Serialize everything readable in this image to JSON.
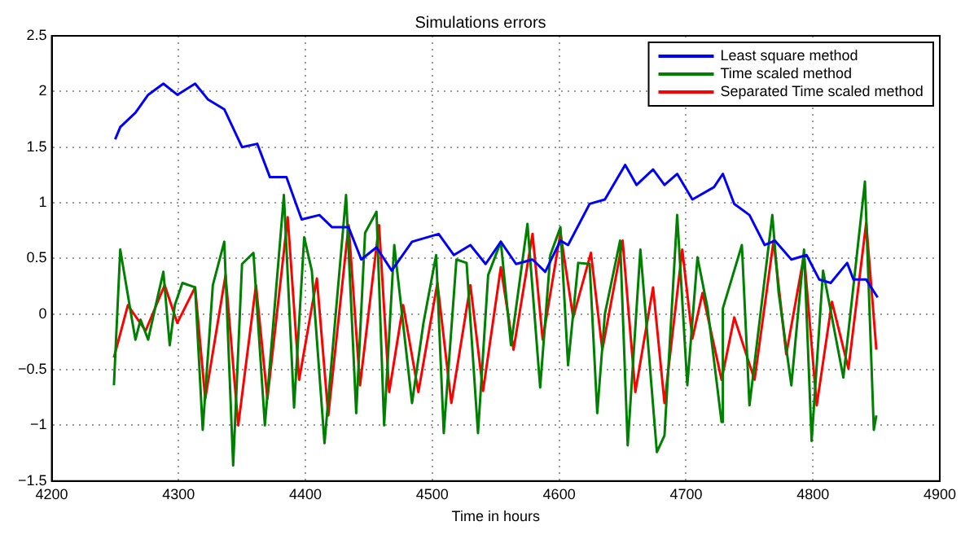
{
  "chart_data": {
    "type": "line",
    "title": "Simulations errors",
    "xlabel": "Time in hours",
    "xlim": [
      4200,
      4900
    ],
    "xticks": [
      4200,
      4300,
      4400,
      4500,
      4600,
      4700,
      4800,
      4900
    ],
    "ylim": [
      -1.5,
      2.5
    ],
    "yticks": [
      {
        "value": -1.5,
        "label": "−1.5"
      },
      {
        "value": -1,
        "label": "−1"
      },
      {
        "value": -0.5,
        "label": "−0.5"
      },
      0,
      0.5,
      1,
      1.5,
      2,
      2.5
    ],
    "grid": true,
    "legend": "top right",
    "marker": "none",
    "line_style": "solid",
    "series": [
      {
        "name": "Least square method",
        "color": "#0000ff",
        "x": [
          4250,
          4254,
          4266,
          4276,
          4288,
          4299,
          4313,
          4323,
          4336,
          4350,
          4362,
          4372,
          4385,
          4397,
          4411,
          4421,
          4434,
          4444,
          4456,
          4468,
          4484,
          4505,
          4517,
          4530,
          4542,
          4554,
          4566,
          4579,
          4589,
          4601,
          4607,
          4624,
          4636,
          4652,
          4661,
          4674,
          4683,
          4693,
          4705,
          4722,
          4729,
          4738,
          4750,
          4762,
          4770,
          4783,
          4795,
          4805,
          4814,
          4827,
          4832,
          4842,
          4851
        ],
        "values": [
          1.57,
          1.68,
          1.81,
          1.97,
          2.07,
          1.97,
          2.07,
          1.93,
          1.84,
          1.5,
          1.53,
          1.23,
          1.23,
          0.85,
          0.89,
          0.78,
          0.78,
          0.49,
          0.6,
          0.39,
          0.65,
          0.72,
          0.53,
          0.62,
          0.45,
          0.65,
          0.45,
          0.49,
          0.38,
          0.66,
          0.62,
          0.99,
          1.03,
          1.34,
          1.16,
          1.3,
          1.16,
          1.26,
          1.03,
          1.14,
          1.26,
          0.99,
          0.89,
          0.62,
          0.66,
          0.49,
          0.53,
          0.31,
          0.28,
          0.46,
          0.31,
          0.31,
          0.15
        ]
      },
      {
        "name": "Time scaled method",
        "color": "#008000",
        "x": [
          4249,
          4254,
          4264,
          4266,
          4270,
          4276,
          4282,
          4288,
          4293,
          4297,
          4303,
          4313,
          4319,
          4327,
          4336,
          4343,
          4350,
          4359,
          4368,
          4383,
          4391,
          4399,
          4405,
          4415,
          4432,
          4440,
          4447,
          4456,
          4462,
          4470,
          4484,
          4493,
          4503,
          4509,
          4519,
          4527,
          4536,
          4544,
          4554,
          4562,
          4575,
          4585,
          4593,
          4601,
          4607,
          4615,
          4624,
          4630,
          4636,
          4648,
          4654,
          4664,
          4677,
          4683,
          4693,
          4701,
          4709,
          4717,
          4728,
          4729,
          4744,
          4750,
          4768,
          4773,
          4783,
          4793,
          4799,
          4808,
          4824,
          4841,
          4848,
          4850
        ],
        "values": [
          -0.64,
          0.58,
          -0.1,
          -0.23,
          -0.05,
          -0.23,
          0.08,
          0.38,
          -0.28,
          0.08,
          0.28,
          0.24,
          -1.04,
          0.26,
          0.65,
          -1.36,
          0.45,
          0.55,
          -1.0,
          1.07,
          -0.84,
          0.69,
          0.39,
          -1.16,
          1.07,
          -0.89,
          0.73,
          0.92,
          -1.0,
          0.62,
          -0.8,
          -0.08,
          0.53,
          -1.07,
          0.49,
          0.46,
          -1.07,
          0.35,
          0.65,
          -0.28,
          0.81,
          -0.66,
          0.53,
          0.78,
          -0.46,
          0.46,
          0.45,
          -0.89,
          0,
          0.66,
          -1.18,
          0.58,
          -1.24,
          -1.09,
          0.89,
          -0.64,
          0.51,
          0.05,
          -0.97,
          0.05,
          0.62,
          -0.82,
          0.89,
          0.19,
          -0.64,
          0.58,
          -1.14,
          0.39,
          -0.57,
          1.19,
          -1.04,
          -0.91
        ]
      },
      {
        "name": "Separated Time scaled method",
        "color": "#ff0000",
        "x": [
          4249,
          4260,
          4274,
          4289,
          4299,
          4313,
          4321,
          4337,
          4347,
          4361,
          4370,
          4386,
          4395,
          4409,
          4418,
          4434,
          4443,
          4458,
          4466,
          4477,
          4489,
          4504,
          4515,
          4530,
          4540,
          4554,
          4564,
          4579,
          4587,
          4601,
          4611,
          4625,
          4634,
          4650,
          4660,
          4674,
          4683,
          4697,
          4705,
          4713,
          4728,
          4738,
          4754,
          4769,
          4779,
          4793,
          4803,
          4815,
          4828,
          4842,
          4850
        ],
        "values": [
          -0.39,
          0.08,
          -0.15,
          0.26,
          -0.08,
          0.24,
          -0.76,
          0.35,
          -1.0,
          0.26,
          -0.76,
          0.87,
          -0.59,
          0.32,
          -0.91,
          0.8,
          -0.64,
          0.8,
          -0.7,
          0.08,
          -0.7,
          0.28,
          -0.8,
          0.26,
          -0.69,
          0.42,
          -0.32,
          0.72,
          -0.23,
          0.73,
          -0.03,
          0.55,
          -0.32,
          0.66,
          -0.7,
          0.24,
          -0.8,
          0.58,
          -0.22,
          0.19,
          -0.59,
          -0.03,
          -0.59,
          0.66,
          -0.36,
          0.53,
          -0.82,
          0.11,
          -0.49,
          0.82,
          -0.32
        ]
      }
    ]
  }
}
